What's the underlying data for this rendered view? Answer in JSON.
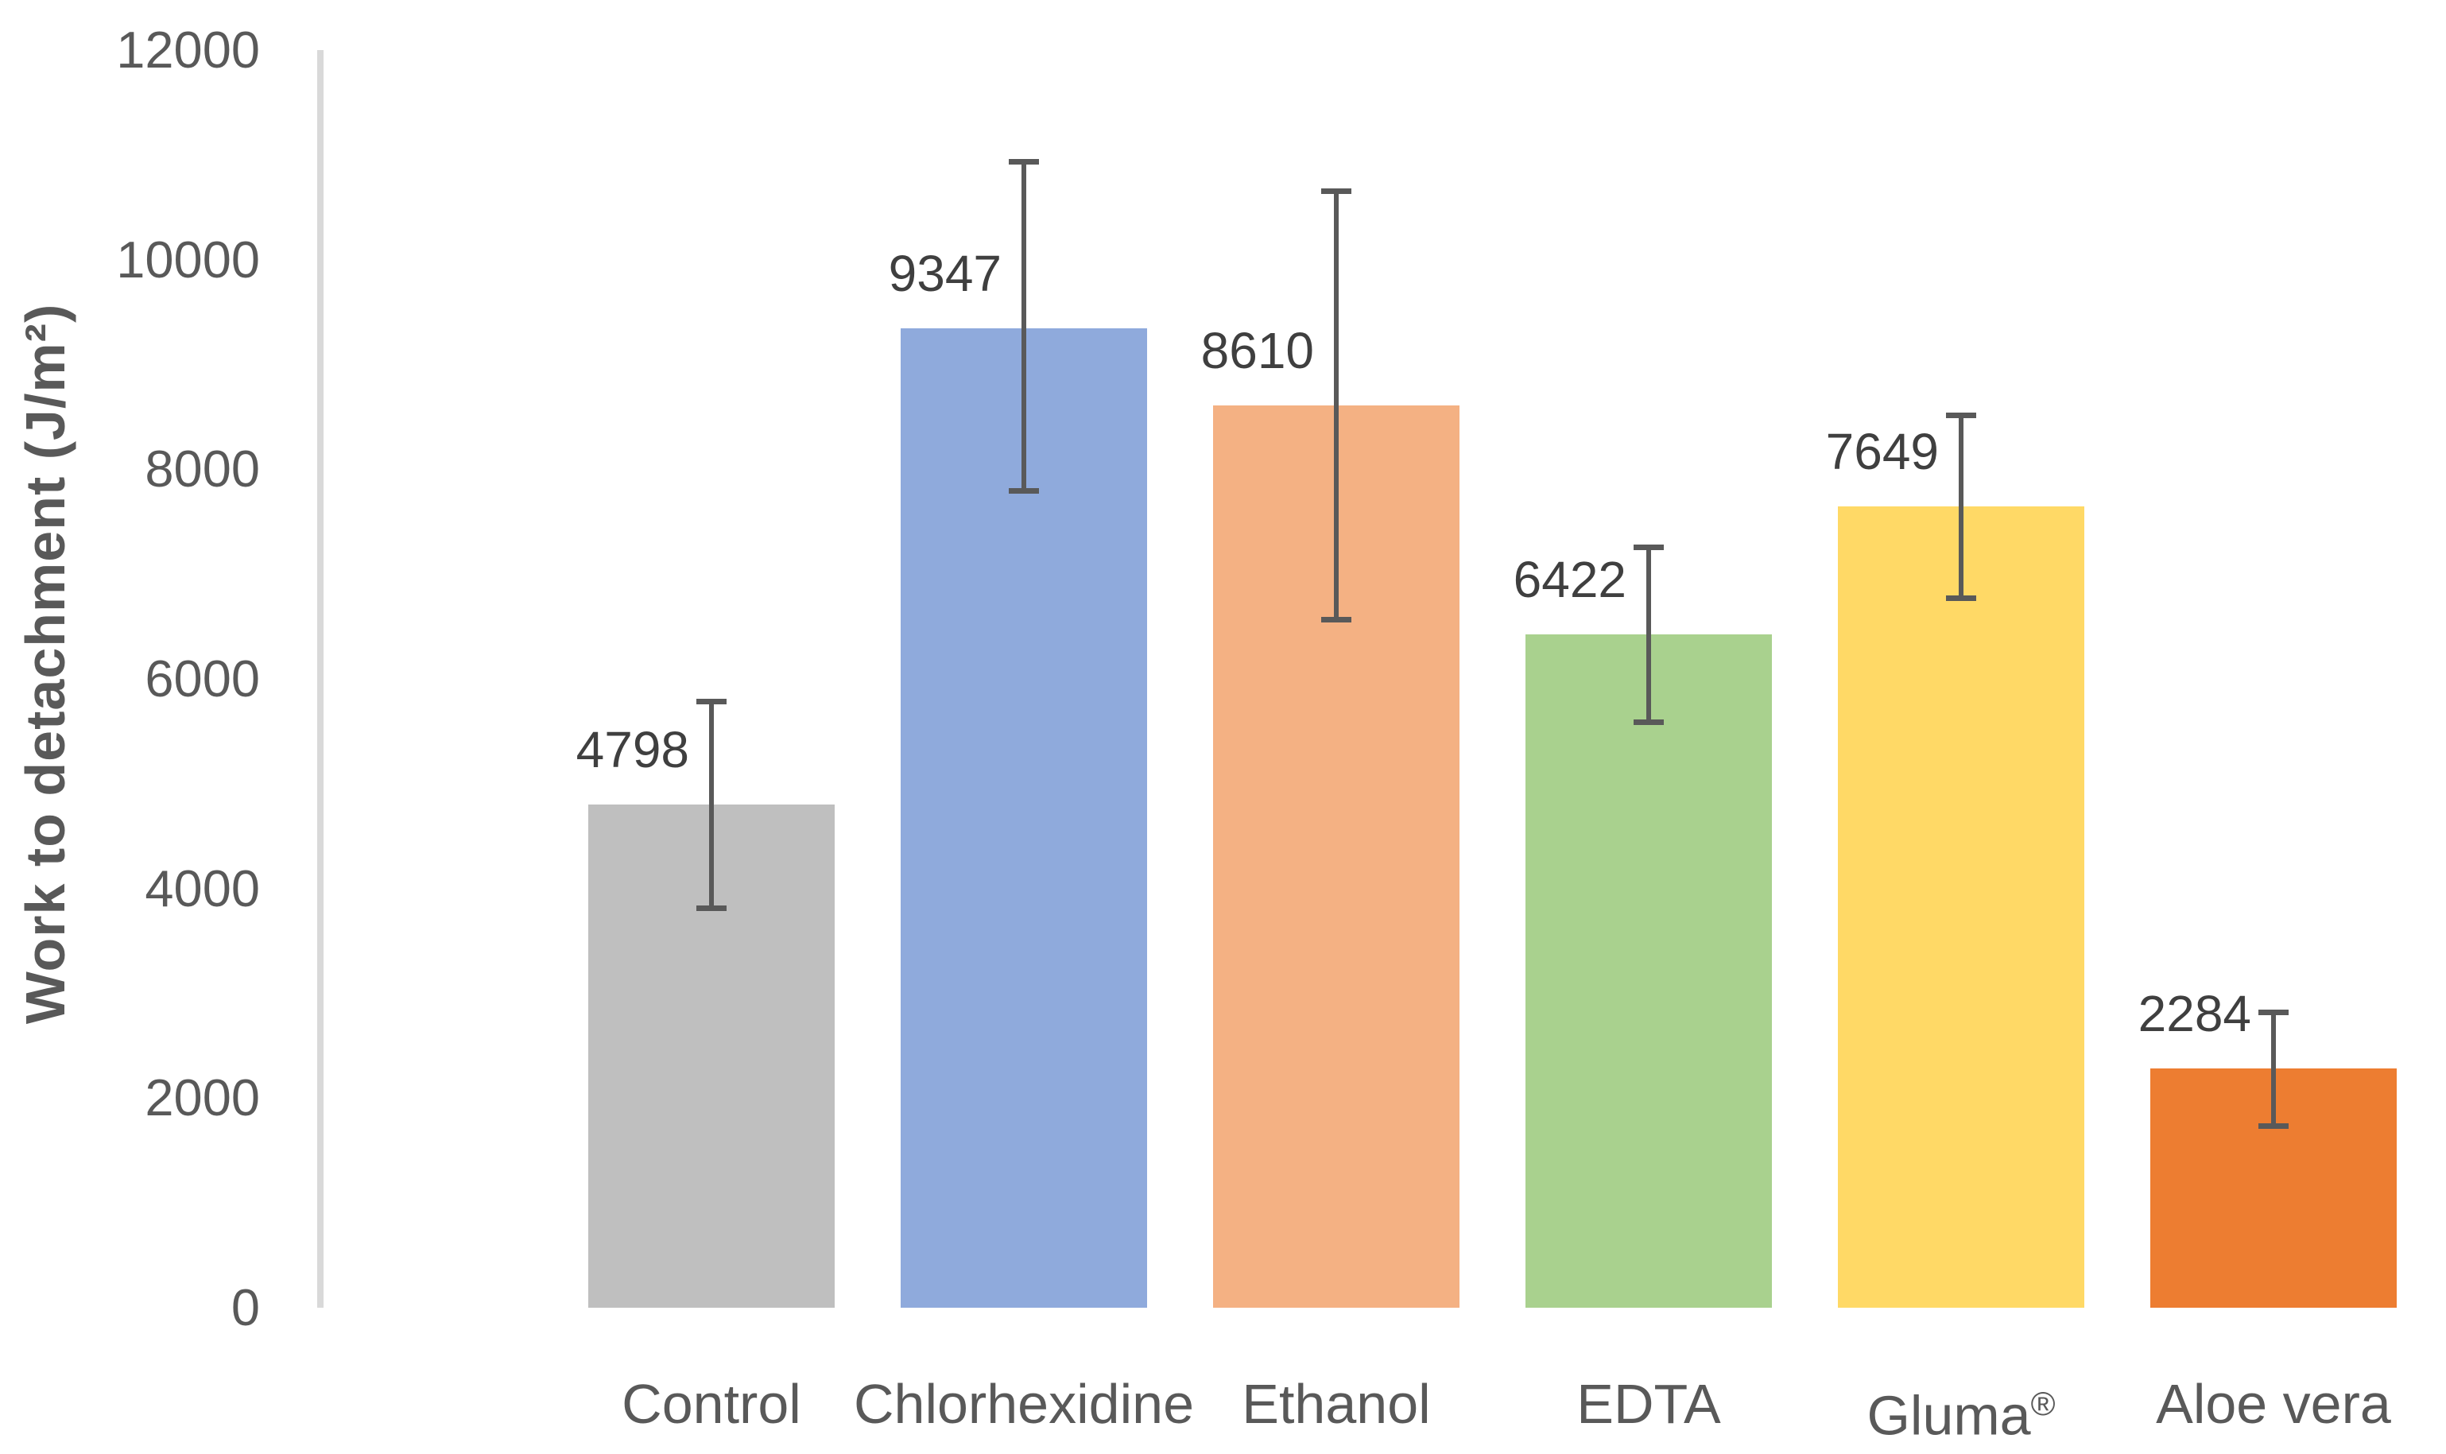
{
  "chart_data": {
    "type": "bar",
    "title": "",
    "xlabel": "",
    "ylabel": "Work to detachment (J/m²)",
    "ylim": [
      0,
      12000
    ],
    "ytick_interval": 2000,
    "ytick_labels": [
      "0",
      "2000",
      "4000",
      "6000",
      "8000",
      "10000",
      "12000"
    ],
    "grid": false,
    "legend_position": "none",
    "categories": [
      "Control",
      "Chlorhexidine",
      "Ethanol",
      "EDTA",
      "Gluma®",
      "Aloe vera"
    ],
    "values": [
      4798,
      9347,
      8610,
      6422,
      7649,
      2284
    ],
    "data_labels": [
      "4798",
      "9347",
      "8610",
      "6422",
      "7649",
      "2284"
    ],
    "error_bars": {
      "upper": [
        5785,
        10940,
        10660,
        7260,
        8520,
        2820
      ],
      "lower": [
        3815,
        7800,
        6570,
        5590,
        6770,
        1740
      ]
    },
    "colors": {
      "bars": [
        "#BFBFBF",
        "#8FAADC",
        "#F4B183",
        "#A9D18E",
        "#FFD966",
        "#ED7D31"
      ],
      "error_bar": "#595959",
      "axis_line": "#D9D9D9",
      "tick_label": "#595959",
      "data_label": "#3F3F3F",
      "category_label": "#595959",
      "axis_title": "#595959"
    }
  }
}
